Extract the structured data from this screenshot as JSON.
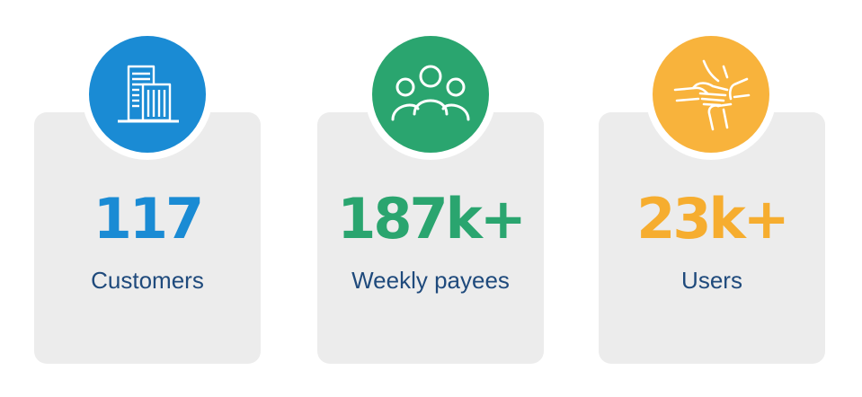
{
  "stats": [
    {
      "value": "117",
      "label": "Customers",
      "color": "#1a8bd4",
      "value_color": "#1a8bd4",
      "icon": "office-building-icon"
    },
    {
      "value": "187k+",
      "label": "Weekly payees",
      "color": "#2aa56f",
      "value_color": "#2aa56f",
      "icon": "people-group-icon"
    },
    {
      "value": "23k+",
      "label": "Users",
      "color": "#f8b33c",
      "value_color": "#f6ad2f",
      "icon": "stacked-hands-icon"
    }
  ],
  "colors": {
    "card_background": "#ececec",
    "label_text": "#1f4a7c",
    "page_background": "#ffffff"
  }
}
